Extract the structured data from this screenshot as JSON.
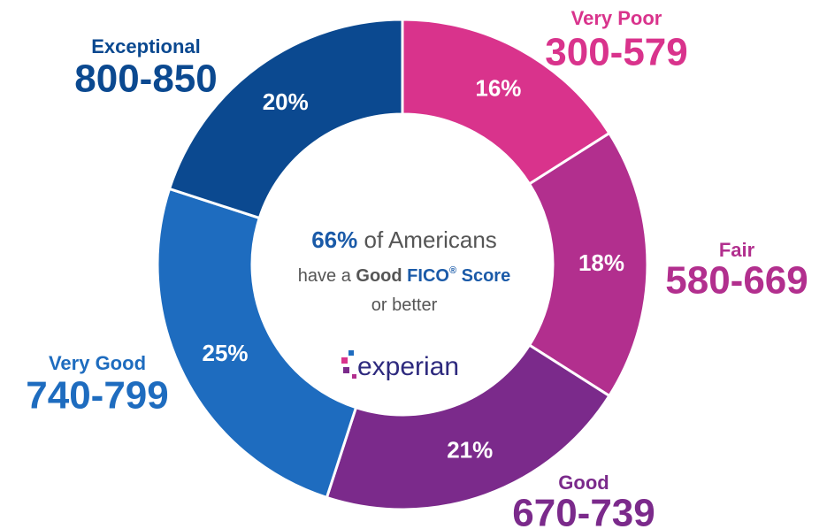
{
  "chart_data": {
    "type": "donut",
    "categories": [
      "Very Poor",
      "Fair",
      "Good",
      "Very Good",
      "Exceptional"
    ],
    "ranges": [
      "300-579",
      "580-669",
      "670-739",
      "740-799",
      "800-850"
    ],
    "values": [
      16,
      18,
      21,
      25,
      20
    ],
    "value_labels": [
      "16%",
      "18%",
      "21%",
      "25%",
      "20%"
    ],
    "colors": [
      "#d9338c",
      "#b22f8e",
      "#7b2a8b",
      "#1e6cbf",
      "#0b4990"
    ],
    "center_text": [
      [
        "66%",
        " of Americans"
      ],
      [
        "have a ",
        "Good",
        " FICO",
        "®",
        " Score"
      ],
      [
        "or better"
      ]
    ],
    "logo": "experian"
  }
}
